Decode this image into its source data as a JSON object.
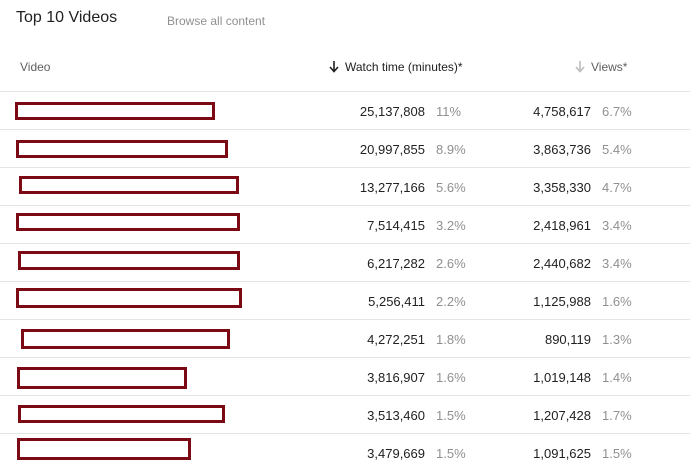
{
  "header": {
    "title": "Top 10 Videos",
    "browse_link": "Browse all content"
  },
  "columns": {
    "video": "Video",
    "watch_time": "Watch time (minutes)*",
    "views": "Views*"
  },
  "rows": [
    {
      "watch_time": "25,137,808",
      "watch_pct": "11%",
      "views": "4,758,617",
      "views_pct": "6.7%"
    },
    {
      "watch_time": "20,997,855",
      "watch_pct": "8.9%",
      "views": "3,863,736",
      "views_pct": "5.4%"
    },
    {
      "watch_time": "13,277,166",
      "watch_pct": "5.6%",
      "views": "3,358,330",
      "views_pct": "4.7%"
    },
    {
      "watch_time": "7,514,415",
      "watch_pct": "3.2%",
      "views": "2,418,961",
      "views_pct": "3.4%"
    },
    {
      "watch_time": "6,217,282",
      "watch_pct": "2.6%",
      "views": "2,440,682",
      "views_pct": "3.4%"
    },
    {
      "watch_time": "5,256,411",
      "watch_pct": "2.2%",
      "views": "1,125,988",
      "views_pct": "1.6%"
    },
    {
      "watch_time": "4,272,251",
      "watch_pct": "1.8%",
      "views": "890,119",
      "views_pct": "1.3%"
    },
    {
      "watch_time": "3,816,907",
      "watch_pct": "1.6%",
      "views": "1,019,148",
      "views_pct": "1.4%"
    },
    {
      "watch_time": "3,513,460",
      "watch_pct": "1.5%",
      "views": "1,207,428",
      "views_pct": "1.7%"
    },
    {
      "watch_time": "3,479,669",
      "watch_pct": "1.5%",
      "views": "1,091,625",
      "views_pct": "1.5%"
    }
  ],
  "colors": {
    "redaction_border": "#7b0a14",
    "divider": "#e4e4e4",
    "muted_text": "#909090"
  },
  "icons": {
    "watch_sort": "arrow-down-icon",
    "views_sort": "arrow-down-icon"
  }
}
